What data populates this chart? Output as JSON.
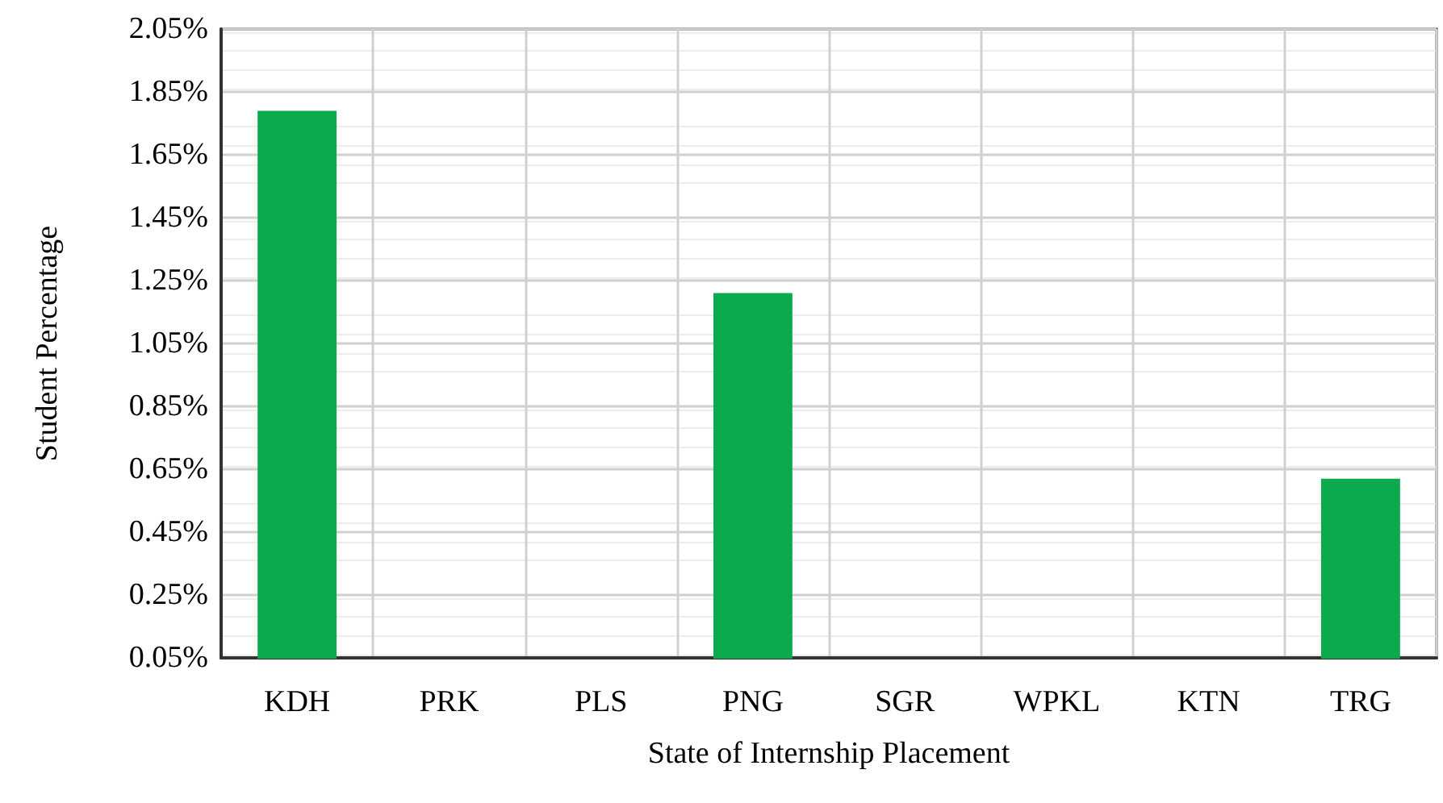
{
  "chart_data": {
    "type": "bar",
    "xlabel": "State of Internship Placement",
    "ylabel": "Student Percentage",
    "categories": [
      "KDH",
      "PRK",
      "PLS",
      "PNG",
      "SGR",
      "WPKL",
      "KTN",
      "TRG"
    ],
    "values": [
      1.79,
      null,
      null,
      1.21,
      null,
      null,
      null,
      0.62
    ],
    "color": "#0bab4d",
    "ylim": [
      0.05,
      2.05
    ],
    "yticks": [
      {
        "value": 0.05,
        "label": "0.05%"
      },
      {
        "value": 0.25,
        "label": "0.25%"
      },
      {
        "value": 0.45,
        "label": "0.45%"
      },
      {
        "value": 0.65,
        "label": "0.65%"
      },
      {
        "value": 0.85,
        "label": "0.85%"
      },
      {
        "value": 1.05,
        "label": "1.05%"
      },
      {
        "value": 1.25,
        "label": "1.25%"
      },
      {
        "value": 1.45,
        "label": "1.45%"
      },
      {
        "value": 1.65,
        "label": "1.65%"
      },
      {
        "value": 1.85,
        "label": "1.85%"
      },
      {
        "value": 2.05,
        "label": "2.05%"
      }
    ],
    "grid": true
  }
}
